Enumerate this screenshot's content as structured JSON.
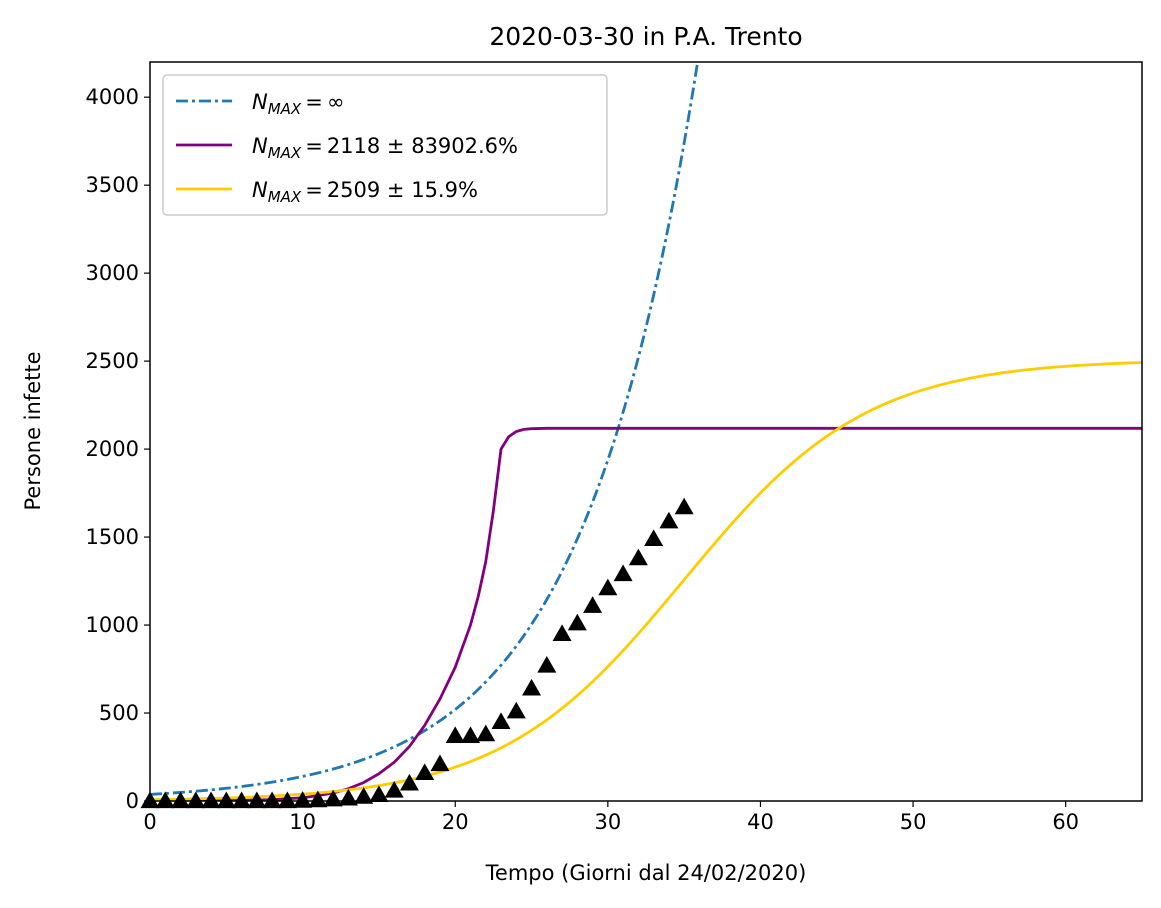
{
  "chart_data": {
    "type": "line",
    "title": "2020-03-30 in P.A. Trento",
    "xlabel": "Tempo (Giorni dal 24/02/2020)",
    "ylabel": "Persone infette",
    "xlim": [
      0,
      65
    ],
    "ylim": [
      0,
      4200
    ],
    "xticks": [
      0,
      10,
      20,
      30,
      40,
      50,
      60
    ],
    "yticks": [
      0,
      500,
      1000,
      1500,
      2000,
      2500,
      3000,
      3500,
      4000
    ],
    "grid": false,
    "legend_position": "top-left",
    "legend": [
      {
        "name": "N_MAX",
        "label": "MAX",
        "sign": "=",
        "value_text": "∞",
        "color": "#1f77b4",
        "style": "dashdot"
      },
      {
        "name": "N_MAX",
        "label": "MAX",
        "sign": "=",
        "value_text": "2118 ± 83902.6%",
        "color": "#800080",
        "style": "solid"
      },
      {
        "name": "N_MAX",
        "label": "MAX",
        "sign": "=",
        "value_text": "2509 ± 15.9%",
        "color": "#ffcc00",
        "style": "solid"
      }
    ],
    "series": [
      {
        "name": "exponential",
        "color": "#1f77b4",
        "style": "dashdot",
        "model": "exponential",
        "params": {
          "a": 37.5,
          "b": 0.1315
        },
        "x_range": [
          0,
          42
        ]
      },
      {
        "name": "logistic 2118",
        "color": "#800080",
        "style": "solid",
        "x": [
          0,
          2,
          4,
          6,
          8,
          10,
          12,
          13,
          14,
          15,
          16,
          17,
          18,
          19,
          20,
          21,
          21.5,
          22,
          22.5,
          23,
          23.5,
          24,
          24.5,
          25,
          26,
          28,
          30,
          35,
          40,
          50,
          60,
          65
        ],
        "y": [
          0,
          1,
          2,
          4,
          8,
          18,
          45,
          70,
          105,
          155,
          220,
          310,
          430,
          580,
          760,
          1000,
          1160,
          1360,
          1650,
          2000,
          2070,
          2100,
          2112,
          2116,
          2118,
          2118,
          2118,
          2118,
          2118,
          2118,
          2118,
          2118
        ]
      },
      {
        "name": "logistic 2509",
        "color": "#ffcc00",
        "style": "solid",
        "model": "logistic",
        "params": {
          "K": 2509,
          "r": 0.1662,
          "t0": 34.97
        },
        "x_range": [
          0,
          65
        ]
      },
      {
        "name": "observed",
        "color": "#000000",
        "style": "marker-triangle",
        "x": [
          0,
          1,
          2,
          3,
          4,
          5,
          6,
          7,
          8,
          9,
          10,
          11,
          12,
          13,
          14,
          15,
          16,
          17,
          18,
          19,
          20,
          21,
          22,
          23,
          24,
          25,
          26,
          27,
          28,
          29,
          30,
          31,
          32,
          33,
          34,
          35
        ],
        "y": [
          0,
          0,
          0,
          0,
          0,
          0,
          0,
          0,
          0,
          0,
          2,
          5,
          10,
          15,
          25,
          35,
          60,
          100,
          160,
          210,
          370,
          370,
          380,
          450,
          510,
          640,
          770,
          950,
          1010,
          1110,
          1210,
          1290,
          1380,
          1490,
          1590,
          1670
        ]
      }
    ]
  }
}
